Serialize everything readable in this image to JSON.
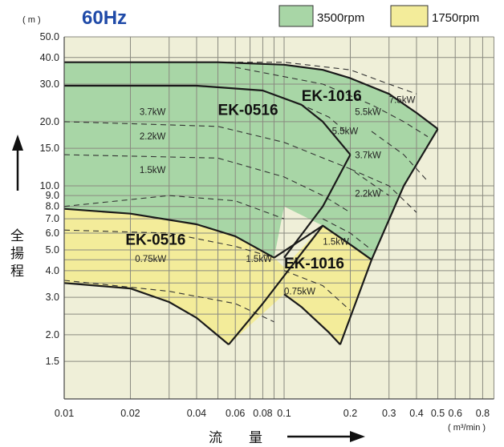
{
  "header": {
    "y_unit": "( m )",
    "frequency": "60Hz",
    "x_unit": "( m³/min )",
    "ylabel_chars": [
      "全",
      "揚",
      "程"
    ],
    "xlabel_chars": [
      "流",
      "量"
    ]
  },
  "legend": [
    {
      "label": "3500rpm",
      "color": "#a8d6a6"
    },
    {
      "label": "1750rpm",
      "color": "#f3ec9a"
    }
  ],
  "colors": {
    "plot_background": "#efefd8",
    "grid": "#8a8a80",
    "green_region": "#a8d6a6",
    "yellow_region": "#f3ec9a",
    "frequency_text": "#1f4aa8"
  },
  "chart_data": {
    "type": "line",
    "xscale": "log",
    "yscale": "log",
    "xlim": [
      0.01,
      1.0
    ],
    "ylim": [
      1.0,
      50.0
    ],
    "xticks": [
      {
        "v": 0.01,
        "label": "0.01"
      },
      {
        "v": 0.02,
        "label": "0.02"
      },
      {
        "v": 0.04,
        "label": "0.04"
      },
      {
        "v": 0.06,
        "label": "0.06"
      },
      {
        "v": 0.08,
        "label": "0.08"
      },
      {
        "v": 0.1,
        "label": "0.1"
      },
      {
        "v": 0.2,
        "label": "0.2"
      },
      {
        "v": 0.3,
        "label": "0.3"
      },
      {
        "v": 0.4,
        "label": "0.4"
      },
      {
        "v": 0.5,
        "label": "0.5"
      },
      {
        "v": 0.6,
        "label": "0.6"
      },
      {
        "v": 0.8,
        "label": "0.8"
      }
    ],
    "yticks": [
      {
        "v": 50,
        "label": "50.0"
      },
      {
        "v": 40,
        "label": "40.0"
      },
      {
        "v": 30,
        "label": "30.0"
      },
      {
        "v": 20,
        "label": "20.0"
      },
      {
        "v": 15,
        "label": "15.0"
      },
      {
        "v": 10,
        "label": "10.0"
      },
      {
        "v": 9,
        "label": "9.0"
      },
      {
        "v": 8,
        "label": "8.0"
      },
      {
        "v": 7,
        "label": "7.0"
      },
      {
        "v": 6,
        "label": "6.0"
      },
      {
        "v": 5,
        "label": "5.0"
      },
      {
        "v": 4,
        "label": "4.0"
      },
      {
        "v": 3,
        "label": "3.0"
      },
      {
        "v": 2,
        "label": "2.0"
      },
      {
        "v": 1.5,
        "label": "1.5"
      }
    ],
    "regions": [
      {
        "fill": "green",
        "outline": [
          [
            0.01,
            38
          ],
          [
            0.05,
            38
          ],
          [
            0.1,
            37
          ],
          [
            0.15,
            35
          ],
          [
            0.2,
            32
          ],
          [
            0.3,
            27
          ],
          [
            0.4,
            22
          ],
          [
            0.5,
            18.5
          ],
          [
            0.35,
            10
          ],
          [
            0.25,
            4.5
          ],
          [
            0.2,
            5.3
          ],
          [
            0.15,
            6.5
          ],
          [
            0.1,
            8
          ],
          [
            0.09,
            4.6
          ],
          [
            0.06,
            5.8
          ],
          [
            0.04,
            6.6
          ],
          [
            0.02,
            7.4
          ],
          [
            0.01,
            7.8
          ]
        ]
      },
      {
        "fill": "yellow",
        "outline": [
          [
            0.01,
            7.8
          ],
          [
            0.02,
            7.4
          ],
          [
            0.04,
            6.6
          ],
          [
            0.06,
            5.8
          ],
          [
            0.09,
            4.6
          ],
          [
            0.1,
            4.15
          ],
          [
            0.15,
            6.5
          ],
          [
            0.2,
            5.3
          ],
          [
            0.25,
            4.5
          ],
          [
            0.18,
            1.8
          ],
          [
            0.16,
            2.05
          ],
          [
            0.12,
            2.7
          ],
          [
            0.1,
            3.1
          ],
          [
            0.056,
            1.8
          ],
          [
            0.04,
            2.4
          ],
          [
            0.03,
            2.85
          ],
          [
            0.02,
            3.3
          ],
          [
            0.01,
            3.5
          ]
        ]
      }
    ],
    "solid_lines": [
      {
        "model": "EK-1016",
        "speed": "3500rpm",
        "points": [
          [
            0.01,
            38
          ],
          [
            0.05,
            38
          ],
          [
            0.1,
            37
          ],
          [
            0.15,
            35
          ],
          [
            0.2,
            32
          ],
          [
            0.3,
            27
          ],
          [
            0.4,
            22
          ],
          [
            0.5,
            18.5
          ]
        ]
      },
      {
        "model": "EK-1016",
        "speed": "3500rpm",
        "points": [
          [
            0.5,
            18.5
          ],
          [
            0.35,
            10
          ],
          [
            0.25,
            4.5
          ]
        ]
      },
      {
        "model": "EK-0516",
        "speed": "3500rpm",
        "points": [
          [
            0.01,
            29.5
          ],
          [
            0.04,
            29.5
          ],
          [
            0.08,
            28
          ],
          [
            0.12,
            24
          ],
          [
            0.15,
            20
          ],
          [
            0.2,
            14
          ]
        ]
      },
      {
        "model": "EK-0516",
        "speed": "3500rpm",
        "points": [
          [
            0.2,
            14
          ],
          [
            0.15,
            8
          ],
          [
            0.1,
            4.6
          ]
        ]
      },
      {
        "model": "EK-0516",
        "speed": "1750rpm",
        "points": [
          [
            0.01,
            7.8
          ],
          [
            0.02,
            7.4
          ],
          [
            0.04,
            6.6
          ],
          [
            0.06,
            5.8
          ],
          [
            0.09,
            4.6
          ]
        ]
      },
      {
        "model": "EK-0516",
        "speed": "1750rpm",
        "points": [
          [
            0.01,
            3.5
          ],
          [
            0.02,
            3.3
          ],
          [
            0.03,
            2.85
          ],
          [
            0.04,
            2.4
          ],
          [
            0.056,
            1.8
          ]
        ]
      },
      {
        "model": "EK-0516",
        "speed": "1750rpm",
        "points": [
          [
            0.056,
            1.8
          ],
          [
            0.08,
            2.8
          ],
          [
            0.15,
            6.5
          ]
        ]
      },
      {
        "model": "EK-1016",
        "speed": "1750rpm",
        "points": [
          [
            0.09,
            4.6
          ],
          [
            0.15,
            6.5
          ],
          [
            0.2,
            5.3
          ],
          [
            0.25,
            4.5
          ]
        ]
      },
      {
        "model": "EK-1016",
        "speed": "1750rpm",
        "points": [
          [
            0.1,
            3.1
          ],
          [
            0.12,
            2.7
          ],
          [
            0.16,
            2.05
          ],
          [
            0.18,
            1.8
          ]
        ]
      },
      {
        "model": "EK-1016",
        "speed": "1750rpm",
        "points": [
          [
            0.18,
            1.8
          ],
          [
            0.25,
            4.5
          ]
        ]
      }
    ],
    "dashed_lines": [
      {
        "label": "7.5kW",
        "points": [
          [
            0.01,
            38
          ],
          [
            0.1,
            38
          ],
          [
            0.2,
            35
          ],
          [
            0.3,
            30
          ],
          [
            0.4,
            27
          ]
        ]
      },
      {
        "label": "5.5kW",
        "points": [
          [
            0.06,
            36
          ],
          [
            0.15,
            30
          ],
          [
            0.25,
            24
          ],
          [
            0.35,
            20
          ],
          [
            0.45,
            17
          ]
        ]
      },
      {
        "label": "5.5kW",
        "points": [
          [
            0.08,
            28
          ],
          [
            0.12,
            24
          ],
          [
            0.16,
            21
          ],
          [
            0.19,
            18
          ]
        ]
      },
      {
        "label": "3.7kW",
        "points": [
          [
            0.01,
            20
          ],
          [
            0.05,
            19
          ],
          [
            0.1,
            16
          ],
          [
            0.2,
            12
          ],
          [
            0.3,
            9
          ]
        ]
      },
      {
        "label": "3.7kW",
        "points": [
          [
            0.25,
            18
          ],
          [
            0.35,
            14
          ],
          [
            0.45,
            10.5
          ]
        ]
      },
      {
        "label": "2.2kW",
        "points": [
          [
            0.01,
            14
          ],
          [
            0.05,
            13.5
          ],
          [
            0.1,
            11
          ],
          [
            0.15,
            9
          ],
          [
            0.2,
            7.5
          ]
        ]
      },
      {
        "label": "2.2kW",
        "points": [
          [
            0.2,
            12
          ],
          [
            0.3,
            10
          ],
          [
            0.4,
            7.5
          ]
        ]
      },
      {
        "label": "1.5kW",
        "points": [
          [
            0.01,
            8
          ],
          [
            0.03,
            9
          ],
          [
            0.06,
            8.5
          ],
          [
            0.1,
            7
          ]
        ]
      },
      {
        "label": "1.5kW",
        "points": [
          [
            0.15,
            7
          ],
          [
            0.2,
            6
          ],
          [
            0.25,
            5
          ]
        ]
      },
      {
        "label": "1.5kW",
        "points": [
          [
            0.01,
            6.2
          ],
          [
            0.03,
            6
          ],
          [
            0.06,
            5.2
          ],
          [
            0.09,
            4.6
          ]
        ]
      },
      {
        "label": "0.75kW",
        "points": [
          [
            0.01,
            3.6
          ],
          [
            0.03,
            3.2
          ],
          [
            0.06,
            2.8
          ],
          [
            0.09,
            2.3
          ]
        ]
      },
      {
        "label": "0.75kW",
        "points": [
          [
            0.1,
            4.0
          ],
          [
            0.15,
            3.4
          ],
          [
            0.2,
            2.6
          ]
        ]
      }
    ],
    "annotations": [
      {
        "text": "EK-1016",
        "kind": "model",
        "x": 0.12,
        "y": 25
      },
      {
        "text": "EK-0516",
        "kind": "model",
        "x": 0.05,
        "y": 21.5
      },
      {
        "text": "EK-0516",
        "kind": "model",
        "x": 0.019,
        "y": 5.3
      },
      {
        "text": "EK-1016",
        "kind": "model",
        "x": 0.1,
        "y": 4.1
      },
      {
        "text": "7.5kW",
        "kind": "kw",
        "x": 0.3,
        "y": 24.5
      },
      {
        "text": "5.5kW",
        "kind": "kw",
        "x": 0.21,
        "y": 21.5
      },
      {
        "text": "5.5kW",
        "kind": "kw",
        "x": 0.165,
        "y": 17.5
      },
      {
        "text": "3.7kW",
        "kind": "kw",
        "x": 0.022,
        "y": 21.5
      },
      {
        "text": "3.7kW",
        "kind": "kw",
        "x": 0.21,
        "y": 13.5
      },
      {
        "text": "2.2kW",
        "kind": "kw",
        "x": 0.022,
        "y": 16.5
      },
      {
        "text": "2.2kW",
        "kind": "kw",
        "x": 0.21,
        "y": 8.9
      },
      {
        "text": "1.5kW",
        "kind": "kw",
        "x": 0.022,
        "y": 11.5
      },
      {
        "text": "1.5kW",
        "kind": "kw",
        "x": 0.15,
        "y": 5.3
      },
      {
        "text": "1.5kW",
        "kind": "kw",
        "x": 0.067,
        "y": 4.4
      },
      {
        "text": "0.75kW",
        "kind": "kw",
        "x": 0.021,
        "y": 4.4
      },
      {
        "text": "0.75kW",
        "kind": "kw",
        "x": 0.1,
        "y": 3.1
      }
    ]
  }
}
